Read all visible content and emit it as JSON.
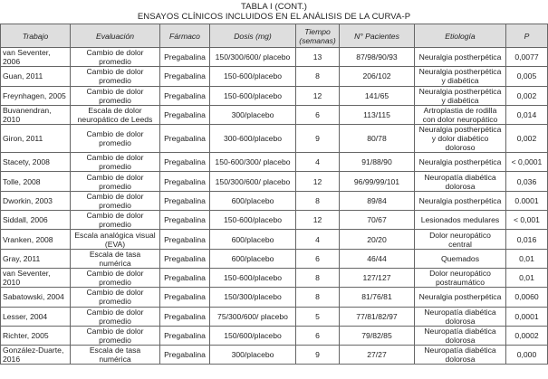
{
  "title": "TABLA I (CONT.)",
  "subtitle": "ENSAYOS CLÍNICOS INCLUIDOS EN EL ANÁLISIS DE LA CURVA-P",
  "columns": [
    "Trabajo",
    "Evaluación",
    "Fármaco",
    "Dosis (mg)",
    "Tiempo (semanas)",
    "N° Pacientes",
    "Etiología",
    "P"
  ],
  "rows": [
    [
      "van Seventer, 2006",
      "Cambio de dolor promedio",
      "Pregabalina",
      "150/300/600/ placebo",
      "13",
      "87/98/90/93",
      "Neuralgia postherpética",
      "0,0077"
    ],
    [
      "Guan, 2011",
      "Cambio de dolor promedio",
      "Pregabalina",
      "150-600/placebo",
      "8",
      "206/102",
      "Neuralgia postherpética y diabética",
      "0,005"
    ],
    [
      "Freynhagen, 2005",
      "Cambio de dolor promedio",
      "Pregabalina",
      "150-600/placebo",
      "12",
      "141/65",
      "Neuralgia postherpética y diabética",
      "0,002"
    ],
    [
      "Buvanendran, 2010",
      "Escala de dolor neuropático de Leeds",
      "Pregabalina",
      "300/placebo",
      "6",
      "113/115",
      "Artroplastia de rodilla con dolor neuropático",
      "0,014"
    ],
    [
      "Giron, 2011",
      "Cambio de dolor promedio",
      "Pregabalina",
      "300-600/placebo",
      "9",
      "80/78",
      "Neuralgia postherpética y dolor diabético doloroso",
      "0,002"
    ],
    [
      "Stacety, 2008",
      "Cambio de dolor promedio",
      "Pregabalina",
      "150-600/300/ placebo",
      "4",
      "91/88/90",
      "Neuralgia postherpética",
      "< 0,0001"
    ],
    [
      "Tolle, 2008",
      "Cambio de dolor promedio",
      "Pregabalina",
      "150/300/600/ placebo",
      "12",
      "96/99/99/101",
      "Neuropatía diabética dolorosa",
      "0,036"
    ],
    [
      "Dworkin, 2003",
      "Cambio de dolor promedio",
      "Pregabalina",
      "600/placebo",
      "8",
      "89/84",
      "Neuralgia postherpética",
      "0.0001"
    ],
    [
      "Siddall, 2006",
      "Cambio de dolor promedio",
      "Pregabalina",
      "150-600/placebo",
      "12",
      "70/67",
      "Lesionados medulares",
      "< 0,001"
    ],
    [
      "Vranken, 2008",
      "Escala analógica visual (EVA)",
      "Pregabalina",
      "600/placebo",
      "4",
      "20/20",
      "Dolor neuropático central",
      "0,016"
    ],
    [
      "Gray, 2011",
      "Escala de tasa numérica",
      "Pregabalina",
      "600/placebo",
      "6",
      "46/44",
      "Quemados",
      "0,01"
    ],
    [
      "van Seventer, 2010",
      "Cambio de dolor promedio",
      "Pregabalina",
      "150-600/placebo",
      "8",
      "127/127",
      "Dolor neuropático postraumático",
      "0,01"
    ],
    [
      "Sabatowski, 2004",
      "Cambio de dolor promedio",
      "Pregabalina",
      "150/300/placebo",
      "8",
      "81/76/81",
      "Neuralgia postherpética",
      "0,0060"
    ],
    [
      "Lesser, 2004",
      "Cambio de dolor promedio",
      "Pregabalina",
      "75/300/600/ placebo",
      "5",
      "77/81/82/97",
      "Neuropatía diabética dolorosa",
      "0,0001"
    ],
    [
      "Richter, 2005",
      "Cambio de dolor promedio",
      "Pregabalina",
      "150/600/placebo",
      "6",
      "79/82/85",
      "Neuropatía diabética dolorosa",
      "0,0002"
    ],
    [
      "González-Duarte, 2016",
      "Escala de tasa numérica",
      "Pregabalina",
      "300/placebo",
      "9",
      "27/27",
      "Neuropatía diabética dolorosa",
      "0,000"
    ]
  ]
}
